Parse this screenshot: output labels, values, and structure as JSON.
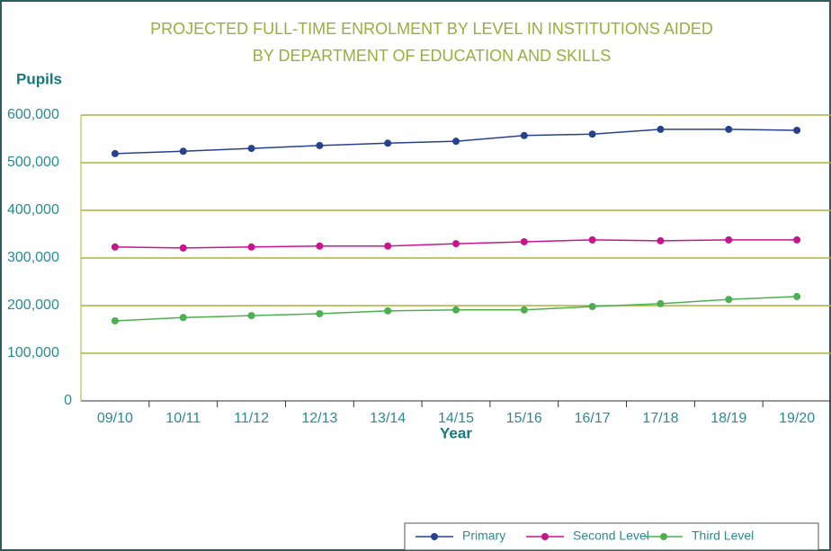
{
  "chart_data": {
    "type": "line",
    "title": [
      "PROJECTED FULL-TIME ENROLMENT BY LEVEL IN INSTITUTIONS AIDED",
      "BY DEPARTMENT OF EDUCATION AND SKILLS"
    ],
    "y_label": "Pupils",
    "x_label": "Year",
    "categories": [
      "09/10",
      "10/11",
      "11/12",
      "12/13",
      "13/14",
      "14/15",
      "15/16",
      "16/17",
      "17/18",
      "18/19",
      "19/20"
    ],
    "series": [
      {
        "name": "Primary",
        "color": "#27418f",
        "values": [
          519000,
          524000,
          530000,
          536000,
          541000,
          545000,
          557000,
          560000,
          570000,
          570000,
          568000
        ]
      },
      {
        "name": "Second Level",
        "color": "#c8148c",
        "values": [
          323000,
          321000,
          323000,
          325000,
          325000,
          330000,
          334000,
          338000,
          336000,
          338000,
          338000
        ]
      },
      {
        "name": "Third Level",
        "color": "#4cb050",
        "values": [
          168000,
          175000,
          179000,
          183000,
          189000,
          191000,
          191000,
          198000,
          204000,
          213000,
          219000
        ]
      }
    ],
    "ylim": [
      0,
      600000
    ],
    "yticks": [
      0,
      {
        "value": 100000,
        "label": "100,000"
      },
      {
        "value": 200000,
        "label": "200,000"
      },
      {
        "value": 300000,
        "label": "300,000"
      },
      {
        "value": 400000,
        "label": "400,000"
      },
      {
        "value": 500000,
        "label": "500,000"
      },
      {
        "value": 600000,
        "label": "600,000"
      }
    ],
    "grid": true,
    "legend": "bottom-right"
  }
}
